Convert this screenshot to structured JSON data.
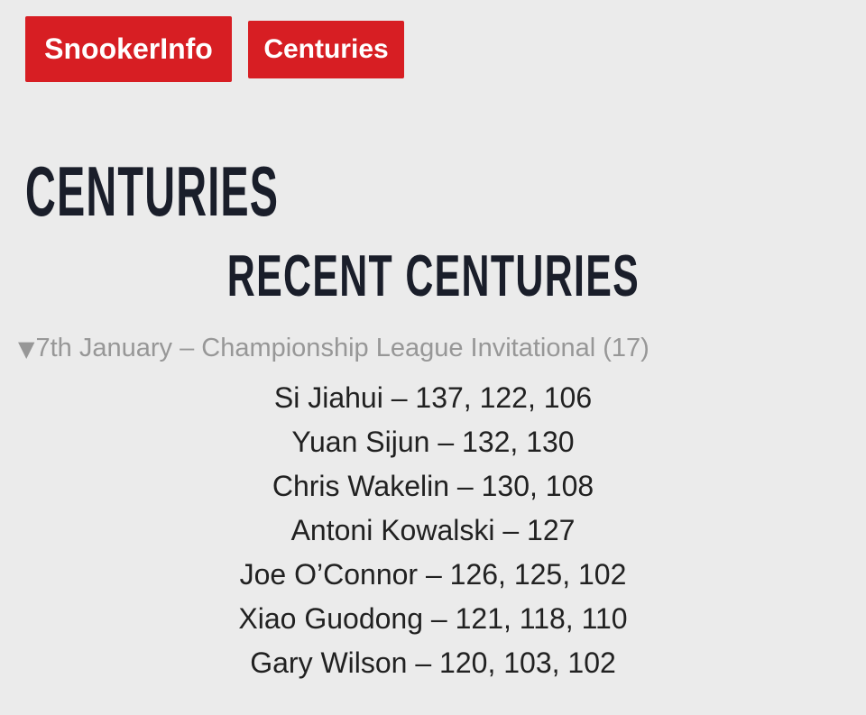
{
  "colors": {
    "background": "#ebebeb",
    "accent_red": "#d71e23",
    "heading_navy": "#1a1e2a",
    "body_text": "#212121",
    "muted_gray": "#979797",
    "button_text": "#ffffff"
  },
  "nav": {
    "buttons": [
      {
        "label": "SnookerInfo"
      },
      {
        "label": "Centuries"
      }
    ]
  },
  "page": {
    "title": "CENTURIES",
    "subtitle": "RECENT CENTURIES"
  },
  "event": {
    "collapse_icon": "▼",
    "title": "7th January – Championship League Invitational (17)",
    "date": "7th January",
    "name": "Championship League Invitational",
    "century_count": 17
  },
  "centuries": {
    "rows": [
      {
        "player": "Si Jiahui",
        "scores": [
          137,
          122,
          106
        ],
        "display": "Si Jiahui – 137, 122, 106"
      },
      {
        "player": "Yuan Sijun",
        "scores": [
          132,
          130
        ],
        "display": "Yuan Sijun – 132, 130"
      },
      {
        "player": "Chris Wakelin",
        "scores": [
          130,
          108
        ],
        "display": "Chris Wakelin – 130, 108"
      },
      {
        "player": "Antoni Kowalski",
        "scores": [
          127
        ],
        "display": "Antoni Kowalski – 127"
      },
      {
        "player": "Joe O’Connor",
        "scores": [
          126,
          125,
          102
        ],
        "display": "Joe O’Connor – 126, 125, 102"
      },
      {
        "player": "Xiao Guodong",
        "scores": [
          121,
          118,
          110
        ],
        "display": "Xiao Guodong – 121, 118, 110"
      },
      {
        "player": "Gary Wilson",
        "scores": [
          120,
          103,
          102
        ],
        "display": "Gary Wilson – 120, 103, 102"
      }
    ]
  }
}
